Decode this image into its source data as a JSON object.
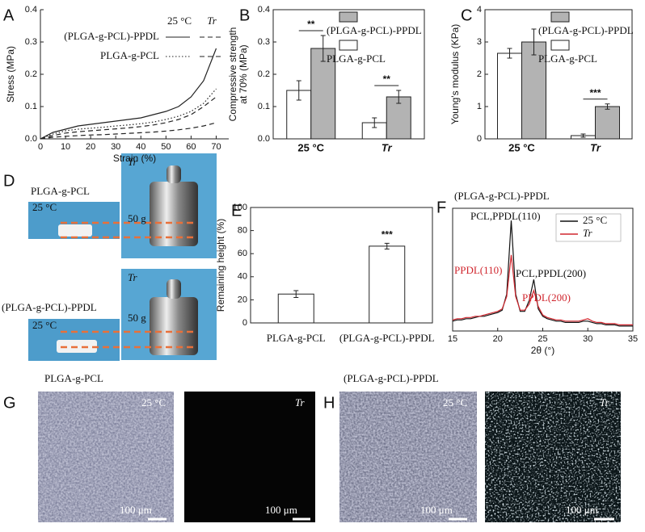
{
  "panel_labels": [
    "A",
    "B",
    "C",
    "D",
    "E",
    "F",
    "G",
    "H"
  ],
  "chart_data": [
    {
      "type": "line",
      "xlabel": "Strain (%)",
      "ylabel": "Stress (MPa)",
      "x": [
        0,
        5,
        10,
        15,
        20,
        25,
        30,
        35,
        40,
        45,
        50,
        55,
        60,
        65,
        70
      ],
      "xlim": [
        0,
        75
      ],
      "xticks": [
        0,
        10,
        20,
        30,
        40,
        50,
        60,
        70
      ],
      "ylim": [
        0,
        0.4
      ],
      "yticks": [
        {
          "value": 0,
          "label": "0.0"
        },
        0.1,
        0.2,
        0.3,
        0.4
      ],
      "legend_columns": [
        "25 °C",
        "Tr"
      ],
      "legend_rows": [
        "(PLGA-g-PCL)-PPDL",
        "PLGA-g-PCL"
      ],
      "series": [
        {
          "style": "solid",
          "color": "#222222",
          "values": [
            0,
            0.02,
            0.03,
            0.04,
            0.045,
            0.05,
            0.055,
            0.06,
            0.065,
            0.075,
            0.085,
            0.1,
            0.13,
            0.18,
            0.28
          ]
        },
        {
          "style": "dashed",
          "color": "#222222",
          "values": [
            0,
            0.01,
            0.018,
            0.022,
            0.025,
            0.028,
            0.031,
            0.034,
            0.038,
            0.043,
            0.05,
            0.06,
            0.075,
            0.1,
            0.13
          ]
        },
        {
          "style": "dotted",
          "color": "#222222",
          "values": [
            0,
            0.015,
            0.025,
            0.03,
            0.033,
            0.036,
            0.04,
            0.043,
            0.047,
            0.052,
            0.06,
            0.07,
            0.085,
            0.11,
            0.155
          ]
        },
        {
          "style": "dashed",
          "color": "#222222",
          "values": [
            0,
            0.005,
            0.008,
            0.01,
            0.012,
            0.013,
            0.015,
            0.017,
            0.019,
            0.021,
            0.024,
            0.028,
            0.033,
            0.04,
            0.05
          ]
        }
      ]
    },
    {
      "type": "bar",
      "ylabel": [
        "Compressive strength",
        "at 70% (MPa)"
      ],
      "categories": [
        "25 °C",
        "Tr"
      ],
      "ylim": [
        0,
        0.4
      ],
      "yticks": [
        {
          "value": 0,
          "label": "0.0"
        },
        0.1,
        0.2,
        0.3,
        0.4
      ],
      "significance": [
        "**",
        "**"
      ],
      "series": [
        {
          "name": "PLGA-g-PCL",
          "color": "#ffffff",
          "values": [
            0.15,
            0.05
          ],
          "errors": [
            0.03,
            0.015
          ]
        },
        {
          "name": "(PLGA-g-PCL)-PPDL",
          "color": "#b3b3b3",
          "values": [
            0.28,
            0.13
          ],
          "errors": [
            0.04,
            0.02
          ]
        }
      ]
    },
    {
      "type": "bar",
      "ylabel": [
        "Young's modulus (KPa)"
      ],
      "categories": [
        "25 °C",
        "Tr"
      ],
      "ylim": [
        0,
        4
      ],
      "yticks": [
        0,
        1,
        2,
        3,
        4
      ],
      "significance": [
        null,
        "***"
      ],
      "series": [
        {
          "name": "PLGA-g-PCL",
          "color": "#ffffff",
          "values": [
            2.65,
            0.1
          ],
          "errors": [
            0.15,
            0.05
          ]
        },
        {
          "name": "(PLGA-g-PCL)-PPDL",
          "color": "#b3b3b3",
          "values": [
            3.0,
            1.0
          ],
          "errors": [
            0.4,
            0.08
          ]
        }
      ]
    },
    {
      "type": "bar",
      "ylabel": [
        "Remaining height (%)"
      ],
      "categories": [
        "PLGA-g-PCL",
        "(PLGA-g-PCL)-PPDL"
      ],
      "ylim": [
        0,
        100
      ],
      "yticks": [
        0,
        20,
        40,
        60,
        80,
        100
      ],
      "significance": [
        null,
        "***"
      ],
      "series": [
        {
          "color": "#ffffff",
          "values": [
            25,
            66.5
          ],
          "errors": [
            3,
            2.5
          ]
        }
      ]
    },
    {
      "type": "line",
      "title": "(PLGA-g-PCL)-PPDL",
      "xlabel": "2θ (°)",
      "x": [
        15,
        15.5,
        16,
        16.5,
        17,
        17.5,
        18,
        18.5,
        19,
        19.5,
        20,
        20.5,
        21,
        21.5,
        22,
        22.5,
        23,
        23.5,
        24,
        24.5,
        25,
        25.5,
        26,
        26.5,
        27,
        27.5,
        28,
        28.5,
        29,
        29.5,
        30,
        30.5,
        31,
        31.5,
        32,
        32.5,
        33,
        33.5,
        34,
        34.5,
        35
      ],
      "xlim": [
        15,
        35
      ],
      "xticks": [
        15,
        20,
        25,
        30,
        35
      ],
      "ylim": [
        0,
        100
      ],
      "legend_box": true,
      "annotations": [
        {
          "text": "PCL,PPDL(110)",
          "color": "#111111"
        },
        {
          "text": "PPDL(110)",
          "color": "#d0262e"
        },
        {
          "text": "PCL,PPDL(200)",
          "color": "#111111"
        },
        {
          "text": "PPDL(200)",
          "color": "#d0262e"
        }
      ],
      "series": [
        {
          "name": "25 °C",
          "style": "solid",
          "color": "#111111",
          "values": [
            8,
            9,
            9,
            10,
            10,
            11,
            12,
            12,
            13,
            14,
            15,
            17,
            30,
            90,
            30,
            16,
            16,
            25,
            42,
            18,
            12,
            10,
            9,
            8,
            8,
            7,
            7,
            7,
            7,
            8,
            8,
            7,
            6,
            6,
            5,
            5,
            5,
            4,
            4,
            4,
            4
          ]
        },
        {
          "name": "Tr",
          "style": "solid",
          "color": "#d0262e",
          "values": [
            9,
            10,
            10,
            11,
            11,
            12,
            12,
            13,
            14,
            15,
            16,
            18,
            28,
            62,
            28,
            17,
            17,
            22,
            33,
            20,
            13,
            11,
            10,
            9,
            9,
            8,
            8,
            8,
            8,
            9,
            10,
            8,
            7,
            7,
            6,
            6,
            6,
            5,
            5,
            5,
            5
          ]
        }
      ]
    }
  ],
  "photos": {
    "top_sample": "PLGA-g-PCL",
    "top_temp": "25 °C",
    "top_cond": "Tr",
    "top_weight": "50 g",
    "bottom_sample": "(PLGA-g-PCL)-PPDL",
    "bottom_temp": "25 °C",
    "bottom_cond": "Tr",
    "bottom_weight": "50 g"
  },
  "micrographs": {
    "g_title": "PLGA-g-PCL",
    "g_left": "25 °C",
    "g_right": "Tr",
    "g_scale_left": "100 μm",
    "g_scale_right": "100 μm",
    "h_title": "(PLGA-g-PCL)-PPDL",
    "h_left": "25 °C",
    "h_right": "Tr",
    "h_scale_left": "100 μm",
    "h_scale_right": "100 μm"
  }
}
